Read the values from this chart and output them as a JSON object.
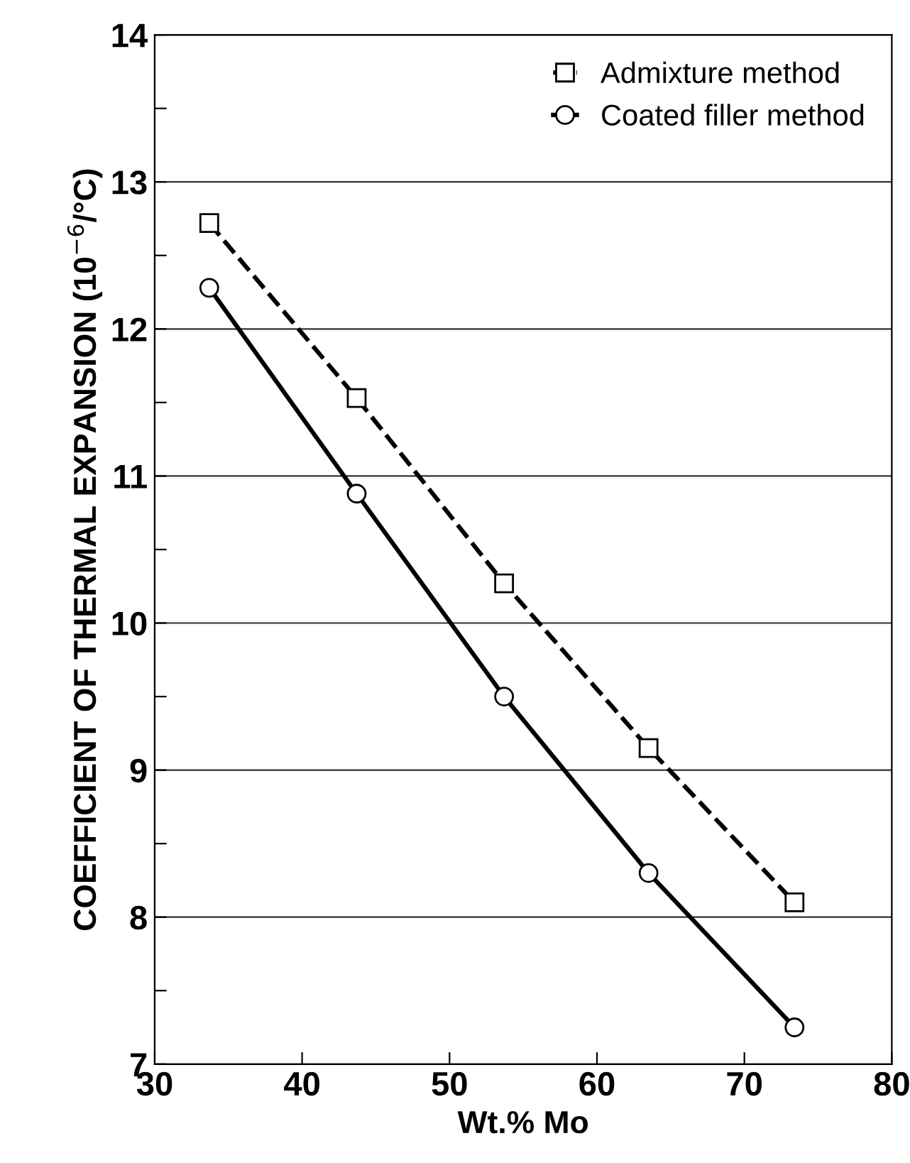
{
  "chart_data": {
    "type": "line",
    "xlabel": "Wt.% Mo",
    "ylabel": "COEFFICIENT OF THERMAL EXPANSION (10$^{−6}$/°C)",
    "x": [
      33.7,
      43.7,
      53.7,
      63.5,
      73.4
    ],
    "series": [
      {
        "name": "Admixture method",
        "color": "#000000",
        "marker": "square",
        "line_style": "dashed",
        "values": [
          12.72,
          11.53,
          10.27,
          9.15,
          8.1
        ]
      },
      {
        "name": "Coated filler method",
        "color": "#000000",
        "marker": "circle",
        "line_style": "solid",
        "values": [
          12.28,
          10.88,
          9.5,
          8.3,
          7.25
        ]
      }
    ],
    "xlim": [
      30,
      80
    ],
    "ylim": [
      7,
      14
    ],
    "xticks": [
      30,
      40,
      50,
      60,
      70,
      80
    ],
    "yticks": [
      7,
      {
        "value": 7.5,
        "label": null
      },
      8,
      {
        "value": 8.5,
        "label": null
      },
      9,
      {
        "value": 9.5,
        "label": null
      },
      10,
      {
        "value": 10.5,
        "label": null
      },
      11,
      {
        "value": 11.5,
        "label": null
      },
      12,
      {
        "value": 12.5,
        "label": null
      },
      13,
      {
        "value": 13.5,
        "label": null
      },
      14
    ],
    "grid": "y",
    "legend": "top right"
  }
}
